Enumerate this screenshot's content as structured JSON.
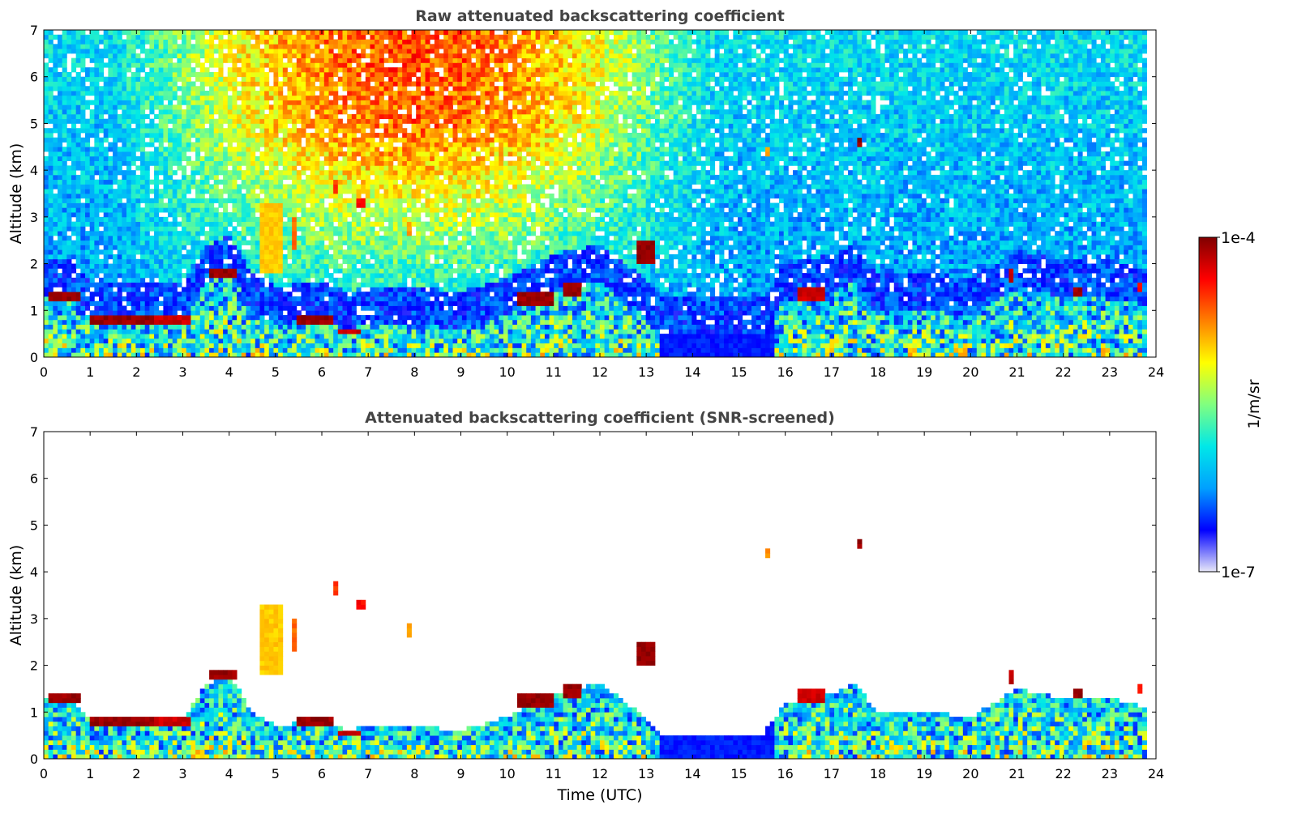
{
  "chart_data": [
    {
      "type": "heatmap",
      "title": "Raw attenuated backscattering coefficient",
      "xlabel": "",
      "ylabel": "Altitude (km)",
      "xlim": [
        0,
        24
      ],
      "ylim": [
        0,
        7
      ],
      "x_ticks": [
        "0",
        "1",
        "2",
        "3",
        "4",
        "5",
        "6",
        "7",
        "8",
        "9",
        "10",
        "11",
        "12",
        "13",
        "14",
        "15",
        "16",
        "17",
        "18",
        "19",
        "20",
        "21",
        "22",
        "23",
        "24"
      ],
      "y_ticks": [
        "0",
        "1",
        "2",
        "3",
        "4",
        "5",
        "6",
        "7"
      ],
      "screened": false,
      "boundary_layer_top_km": [
        [
          0,
          1.3
        ],
        [
          0.5,
          1.35
        ],
        [
          1,
          0.85
        ],
        [
          2,
          0.8
        ],
        [
          3,
          0.85
        ],
        [
          3.5,
          1.6
        ],
        [
          4,
          1.8
        ],
        [
          4.5,
          1.0
        ],
        [
          5,
          0.7
        ],
        [
          6,
          0.85
        ],
        [
          6.5,
          0.6
        ],
        [
          7,
          0.7
        ],
        [
          8,
          0.7
        ],
        [
          9,
          0.6
        ],
        [
          10,
          0.9
        ],
        [
          11,
          1.4
        ],
        [
          12,
          1.6
        ],
        [
          13,
          0.9
        ],
        [
          13.3,
          0.5
        ],
        [
          15.5,
          0.5
        ],
        [
          16,
          1.2
        ],
        [
          17,
          1.4
        ],
        [
          17.5,
          1.6
        ],
        [
          18,
          1.0
        ],
        [
          19,
          1.0
        ],
        [
          20,
          0.9
        ],
        [
          21,
          1.5
        ],
        [
          22,
          1.3
        ],
        [
          23,
          1.3
        ],
        [
          23.8,
          1.1
        ]
      ],
      "cloud_features": [
        {
          "t": [
            0.1,
            0.8
          ],
          "alt": [
            1.2,
            1.4
          ],
          "level": 1.0
        },
        {
          "t": [
            1.0,
            2.4
          ],
          "alt": [
            0.7,
            0.9
          ],
          "level": 1.0
        },
        {
          "t": [
            2.4,
            3.2
          ],
          "alt": [
            0.75,
            0.85
          ],
          "level": 0.95
        },
        {
          "t": [
            3.6,
            4.2
          ],
          "alt": [
            1.7,
            1.9
          ],
          "level": 1.0
        },
        {
          "t": [
            4.7,
            5.2
          ],
          "alt": [
            1.8,
            3.3
          ],
          "level": 0.7
        },
        {
          "t": [
            5.4,
            5.5
          ],
          "alt": [
            2.3,
            3.0
          ],
          "level": 0.8
        },
        {
          "t": [
            6.2,
            6.3
          ],
          "alt": [
            3.5,
            3.8
          ],
          "level": 0.85
        },
        {
          "t": [
            6.7,
            6.9
          ],
          "alt": [
            3.2,
            3.4
          ],
          "level": 0.9
        },
        {
          "t": [
            5.5,
            6.2
          ],
          "alt": [
            0.75,
            0.9
          ],
          "level": 1.0
        },
        {
          "t": [
            6.3,
            6.8
          ],
          "alt": [
            0.5,
            0.6
          ],
          "level": 0.95
        },
        {
          "t": [
            7.8,
            7.9
          ],
          "alt": [
            2.6,
            2.9
          ],
          "level": 0.75
        },
        {
          "t": [
            10.2,
            11.0
          ],
          "alt": [
            1.1,
            1.4
          ],
          "level": 1.0
        },
        {
          "t": [
            11.2,
            11.6
          ],
          "alt": [
            1.35,
            1.55
          ],
          "level": 1.0
        },
        {
          "t": [
            12.8,
            13.2
          ],
          "alt": [
            2.0,
            2.5
          ],
          "level": 1.0
        },
        {
          "t": [
            15.6,
            15.7
          ],
          "alt": [
            4.3,
            4.5
          ],
          "level": 0.75
        },
        {
          "t": [
            17.6,
            17.7
          ],
          "alt": [
            4.5,
            4.7
          ],
          "level": 1.0
        },
        {
          "t": [
            16.3,
            16.9
          ],
          "alt": [
            1.2,
            1.5
          ],
          "level": 0.95
        },
        {
          "t": [
            20.8,
            20.9
          ],
          "alt": [
            1.6,
            1.85
          ],
          "level": 0.95
        },
        {
          "t": [
            22.2,
            22.4
          ],
          "alt": [
            1.3,
            1.5
          ],
          "level": 1.0
        },
        {
          "t": [
            23.6,
            23.7
          ],
          "alt": [
            1.4,
            1.6
          ],
          "level": 0.9
        }
      ]
    },
    {
      "type": "heatmap",
      "title": "Attenuated backscattering coefficient (SNR-screened)",
      "xlabel": "Time (UTC)",
      "ylabel": "Altitude (km)",
      "xlim": [
        0,
        24
      ],
      "ylim": [
        0,
        7
      ],
      "x_ticks": [
        "0",
        "1",
        "2",
        "3",
        "4",
        "5",
        "6",
        "7",
        "8",
        "9",
        "10",
        "11",
        "12",
        "13",
        "14",
        "15",
        "16",
        "17",
        "18",
        "19",
        "20",
        "21",
        "22",
        "23",
        "24"
      ],
      "y_ticks": [
        "0",
        "1",
        "2",
        "3",
        "4",
        "5",
        "6",
        "7"
      ],
      "screened": true
    }
  ],
  "colorbar": {
    "label": "1/m/sr",
    "max_label": "1e-4",
    "min_label": "1e-7",
    "colormap": "jet",
    "colors": [
      "#e8e8f8",
      "#0000ff",
      "#00a0ff",
      "#00e8e8",
      "#80ff80",
      "#ffff00",
      "#ff8000",
      "#ff0000",
      "#800000"
    ]
  }
}
